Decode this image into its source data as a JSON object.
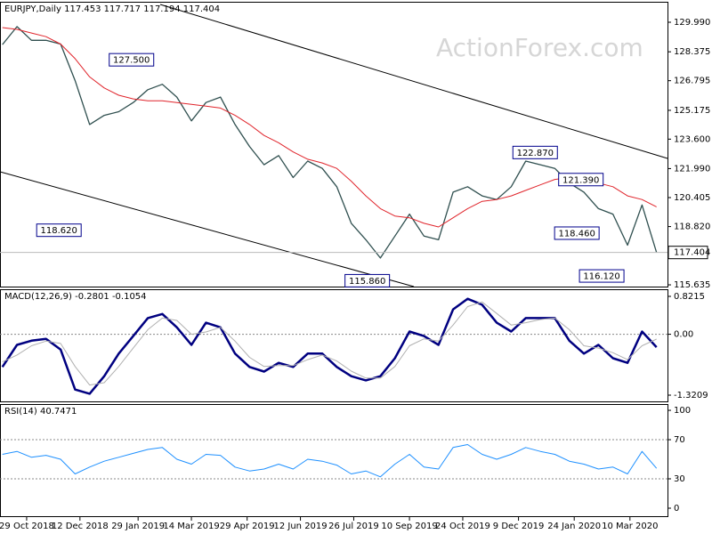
{
  "chart_data": [
    {
      "type": "line",
      "title": "EURJPY,Daily",
      "open": 117.453,
      "high": 117.717,
      "low": 117.194,
      "watermark": "ActionForex.com",
      "x": [
        "2018-10-09",
        "2018-10-21",
        "2018-11-02",
        "2018-11-14",
        "2018-11-26",
        "2018-12-08",
        "2018-12-20",
        "2019-01-01",
        "2019-01-13",
        "2019-01-25",
        "2019-02-06",
        "2019-02-18",
        "2019-03-02",
        "2019-03-14",
        "2019-03-26",
        "2019-04-07",
        "2019-04-19",
        "2019-05-01",
        "2019-05-13",
        "2019-05-25",
        "2019-06-06",
        "2019-06-18",
        "2019-06-30",
        "2019-07-12",
        "2019-07-24",
        "2019-08-05",
        "2019-08-17",
        "2019-08-29",
        "2019-09-10",
        "2019-09-22",
        "2019-10-04",
        "2019-10-16",
        "2019-10-28",
        "2019-11-09",
        "2019-11-21",
        "2019-12-03",
        "2019-12-15",
        "2019-12-27",
        "2020-01-08",
        "2020-01-20",
        "2020-02-01",
        "2020-02-13",
        "2020-02-25",
        "2020-03-08",
        "2020-03-20",
        "2020-04-01"
      ],
      "xlim": [
        "2018-10-07",
        "2020-04-10"
      ],
      "xticks": [
        {
          "value": "2018-10-29",
          "label": "29 Oct 2018"
        },
        {
          "value": "2018-12-12",
          "label": "12 Dec 2018"
        },
        {
          "value": "2019-01-29",
          "label": "29 Jan 2019"
        },
        {
          "value": "2019-03-14",
          "label": "14 Mar 2019"
        },
        {
          "value": "2019-04-29",
          "label": "29 Apr 2019"
        },
        {
          "value": "2019-06-12",
          "label": "12 Jun 2019"
        },
        {
          "value": "2019-07-26",
          "label": "26 Jul 2019"
        },
        {
          "value": "2019-09-10",
          "label": "10 Sep 2019"
        },
        {
          "value": "2019-10-24",
          "label": "24 Oct 2019"
        },
        {
          "value": "2019-12-09",
          "label": "9 Dec 2019"
        },
        {
          "value": "2020-01-24",
          "label": "24 Jan 2020"
        },
        {
          "value": "2020-03-10",
          "label": "10 Mar 2020"
        }
      ],
      "ylim": [
        115.54,
        131.06
      ],
      "yticks": [
        {
          "value": 129.99,
          "label": "129.990"
        },
        128.375,
        126.795,
        125.175,
        {
          "value": 123.6,
          "label": "123.600"
        },
        {
          "value": 121.99,
          "label": "121.990"
        },
        120.405,
        {
          "value": 118.82,
          "label": "118.820"
        },
        115.635
      ],
      "grid": false,
      "series": [
        {
          "color": "#2f4f4f",
          "values": [
            128.77,
            129.75,
            129.0,
            129.0,
            128.8,
            126.8,
            124.4,
            124.9,
            125.1,
            125.6,
            126.3,
            126.6,
            125.9,
            124.6,
            125.6,
            125.9,
            124.4,
            123.2,
            122.2,
            122.7,
            121.5,
            122.4,
            122.0,
            121.0,
            119.0,
            118.1,
            117.1,
            118.3,
            119.5,
            118.3,
            118.1,
            120.7,
            121.0,
            120.5,
            120.3,
            121.0,
            122.4,
            122.2,
            122.0,
            121.2,
            120.7,
            119.8,
            119.5,
            117.8,
            120.0,
            117.404
          ]
        },
        {
          "color": "#e0242b",
          "values": [
            129.7,
            129.6,
            129.4,
            129.2,
            128.8,
            128.0,
            127.0,
            126.4,
            126.0,
            125.8,
            125.7,
            125.7,
            125.6,
            125.5,
            125.4,
            125.3,
            124.9,
            124.4,
            123.8,
            123.4,
            122.9,
            122.5,
            122.3,
            122.0,
            121.3,
            120.5,
            119.8,
            119.4,
            119.3,
            119.0,
            118.8,
            119.3,
            119.8,
            120.2,
            120.3,
            120.5,
            120.8,
            121.1,
            121.4,
            121.5,
            121.4,
            121.2,
            121.0,
            120.5,
            120.3,
            119.9
          ]
        }
      ],
      "annotations": [
        {
          "x": "2019-01-25",
          "y": 127.5,
          "label": "127.500"
        },
        {
          "x": "2018-12-13",
          "y": 118.62,
          "label": "118.620"
        },
        {
          "x": "2019-08-26",
          "y": 115.86,
          "label": "115.860"
        },
        {
          "x": "2019-12-22",
          "y": 122.87,
          "label": "122.870"
        },
        {
          "x": "2020-02-11",
          "y": 121.39,
          "label": "121.390"
        },
        {
          "x": "2020-02-15",
          "y": 118.46,
          "label": "118.460"
        },
        {
          "x": "2020-03-08",
          "y": 116.12,
          "label": "116.120"
        }
      ]
    },
    {
      "type": "line",
      "title": "MACD(12,26,9)",
      "ylim": [
        -1.456,
        0.9566
      ],
      "yticks": [
        0.8215,
        {
          "value": 0,
          "label": "0.00"
        },
        -1.3209
      ],
      "grid": "inner",
      "series": [
        {
          "color": "#000080",
          "values": [
            -0.71,
            -0.23,
            -0.14,
            -0.1,
            -0.33,
            -1.2,
            -1.29,
            -0.91,
            -0.42,
            -0.04,
            0.35,
            0.44,
            0.15,
            -0.23,
            0.25,
            0.15,
            -0.42,
            -0.71,
            -0.81,
            -0.62,
            -0.71,
            -0.42,
            -0.42,
            -0.71,
            -0.91,
            -1.0,
            -0.91,
            -0.52,
            0.06,
            -0.04,
            -0.23,
            0.54,
            0.77,
            0.64,
            0.25,
            0.06,
            0.35,
            0.35,
            0.35,
            -0.14,
            -0.42,
            -0.23,
            -0.52,
            -0.62,
            0.06,
            -0.2801
          ]
        },
        {
          "color": "#b0b0b0",
          "values": [
            -0.6,
            -0.45,
            -0.25,
            -0.15,
            -0.2,
            -0.7,
            -1.1,
            -1.05,
            -0.7,
            -0.3,
            0.1,
            0.35,
            0.3,
            0.0,
            0.05,
            0.15,
            -0.15,
            -0.5,
            -0.7,
            -0.68,
            -0.68,
            -0.55,
            -0.45,
            -0.58,
            -0.8,
            -0.95,
            -0.95,
            -0.7,
            -0.25,
            -0.1,
            -0.15,
            0.2,
            0.6,
            0.7,
            0.45,
            0.2,
            0.25,
            0.32,
            0.35,
            0.1,
            -0.25,
            -0.3,
            -0.4,
            -0.55,
            -0.25,
            -0.1054
          ]
        }
      ]
    },
    {
      "type": "line",
      "title": "RSI(14)",
      "ylim": [
        -8.2,
        105.5
      ],
      "yticks": [
        100,
        70,
        30,
        0
      ],
      "grid": "inner",
      "series": [
        {
          "color": "#1e90ff",
          "values": [
            55,
            58,
            52,
            54,
            50,
            35,
            42,
            48,
            52,
            56,
            60,
            62,
            50,
            45,
            55,
            54,
            42,
            38,
            40,
            45,
            40,
            50,
            48,
            44,
            35,
            38,
            32,
            45,
            55,
            42,
            40,
            62,
            65,
            55,
            50,
            55,
            62,
            58,
            55,
            48,
            45,
            40,
            42,
            35,
            58,
            40.7471
          ]
        }
      ]
    }
  ]
}
